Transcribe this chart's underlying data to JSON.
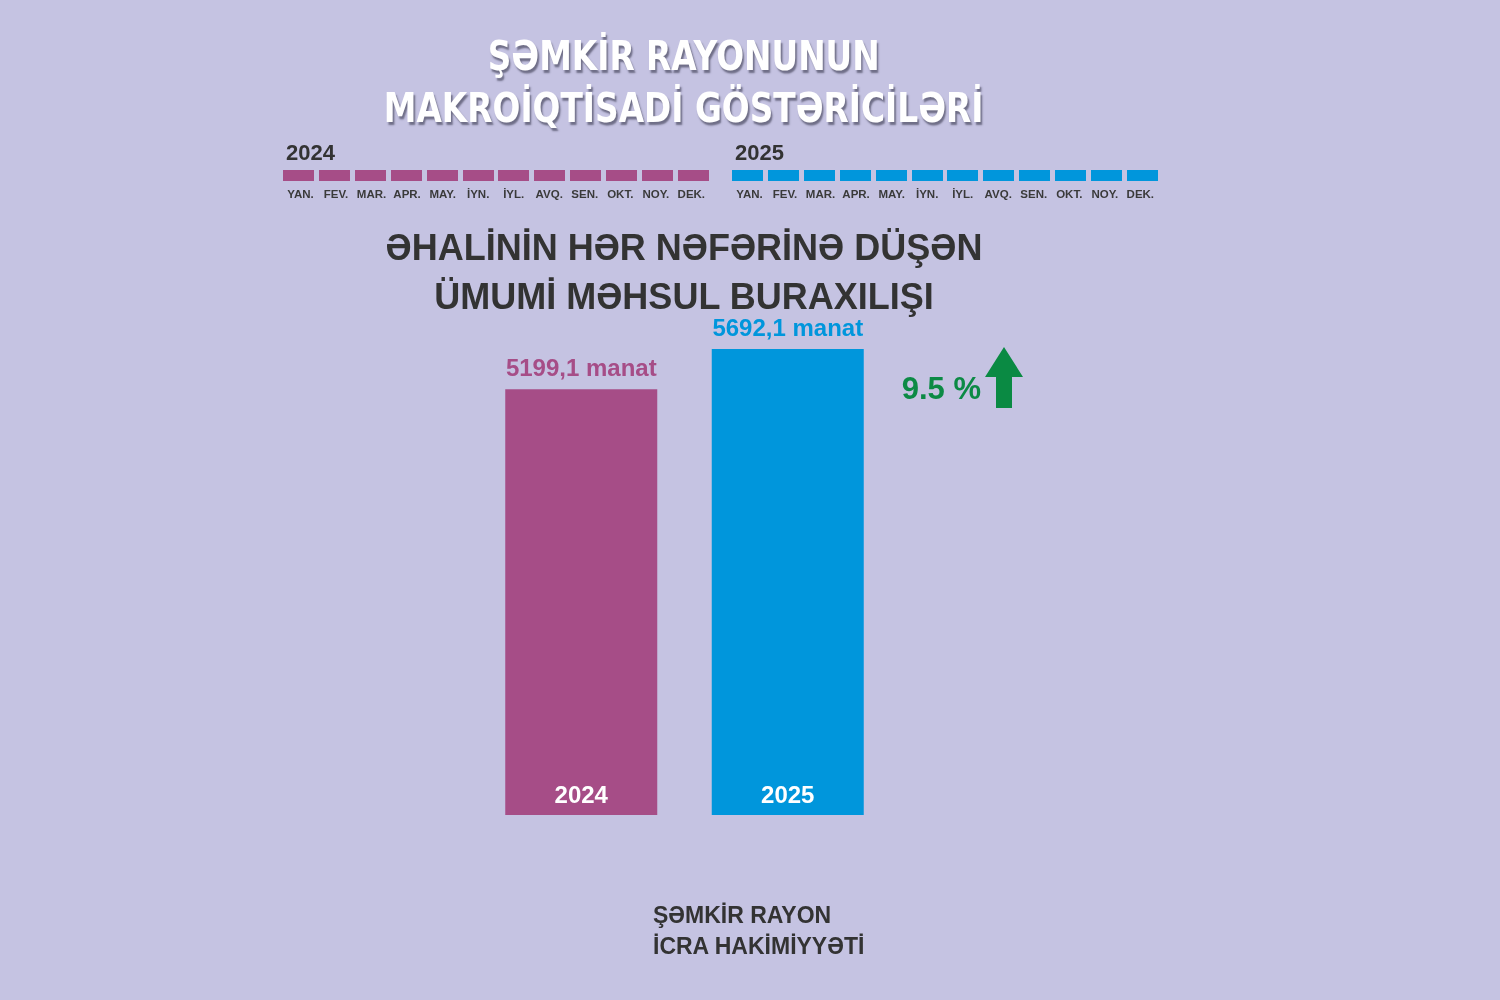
{
  "chart_data": [
    {
      "type": "other",
      "title": "ŞƏMKİR RAYONUNUN\nMAKROİQTİSADİ GÖSTƏRİCİLƏRİ",
      "categories": [
        "YAN.",
        "FEV.",
        "MAR.",
        "APR.",
        "MAY.",
        "İYN.",
        "İYL.",
        "AVQ.",
        "SEN.",
        "OKT.",
        "NOY.",
        "DEK."
      ],
      "annotations": [
        "2024",
        "2025"
      ]
    },
    {
      "type": "bar",
      "title": "ƏHALİNİN HƏR NƏFƏRİNƏ DÜŞƏN\nÜMUMİ MƏHSUL BURAXILIŞI",
      "categories": [
        "2024",
        "2025"
      ],
      "values": [
        5199.1,
        5692.1
      ],
      "colors": [
        "#a64d87",
        "#0096dc"
      ],
      "value_labels": [
        "5199,1 manat",
        "5692,1 manat"
      ],
      "tick_labels": "x",
      "annotations": [
        "9.5 %",
        "ŞƏMKİR RAYON\nİCRA HAKİMİYYƏTİ"
      ]
    }
  ]
}
